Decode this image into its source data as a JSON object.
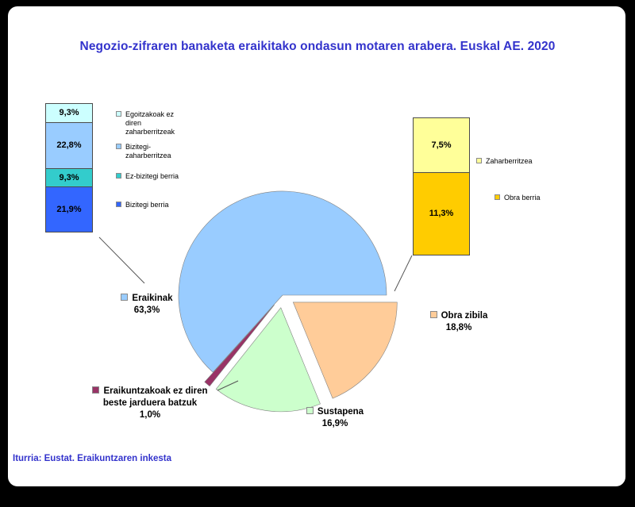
{
  "title": "Negozio-zifraren banaketa eraikitako ondasun motaren arabera. Euskal AE. 2020",
  "source": "Iturria: Eustat. Eraikuntzaren inkesta",
  "colors": {
    "title": "#3333CC",
    "source": "#3333CC",
    "page_background": "#FFFFFF",
    "frame": "#000000"
  },
  "chart_data": {
    "type": "pie",
    "title": "Negozio-zifraren banaketa eraikitako ondasun motaren arabera. Euskal AE. 2020",
    "units": "percent",
    "start_angle_deg": -137.9,
    "slices": [
      {
        "name": "Eraikinak",
        "value": 63.3,
        "value_label": "63,3%",
        "color": "#99CCFF",
        "exploded": false
      },
      {
        "name": "Obra zibila",
        "value": 18.8,
        "value_label": "18,8%",
        "color": "#FFCC99",
        "exploded": true
      },
      {
        "name": "Sustapena",
        "value": 16.9,
        "value_label": "16,9%",
        "color": "#CCFFCC",
        "exploded": true
      },
      {
        "name": "Eraikuntzakoak ez diren beste jarduera batzuk",
        "value": 1.0,
        "value_label": "1,0%",
        "color": "#993366",
        "exploded": true
      }
    ],
    "breakdown_bars": [
      {
        "parent": "Eraikinak",
        "total": 63.3,
        "segments": [
          {
            "label": "Egoitzakoak ez diren zaharberritzeak",
            "value": 9.3,
            "value_label": "9,3%",
            "color": "#CCFFFF"
          },
          {
            "label": "Bizitegi-zaharberritzea",
            "value": 22.8,
            "value_label": "22,8%",
            "color": "#99CCFF"
          },
          {
            "label": "Ez-bizitegi berria",
            "value": 9.3,
            "value_label": "9,3%",
            "color": "#33CCCC"
          },
          {
            "label": "Bizitegi berria",
            "value": 21.9,
            "value_label": "21,9%",
            "color": "#3366FF"
          }
        ]
      },
      {
        "parent": "Obra zibila",
        "total": 18.8,
        "segments": [
          {
            "label": "Zaharberritzea",
            "value": 7.5,
            "value_label": "7,5%",
            "color": "#FFFF99"
          },
          {
            "label": "Obra berria",
            "value": 11.3,
            "value_label": "11,3%",
            "color": "#FFCC00"
          }
        ]
      }
    ]
  }
}
